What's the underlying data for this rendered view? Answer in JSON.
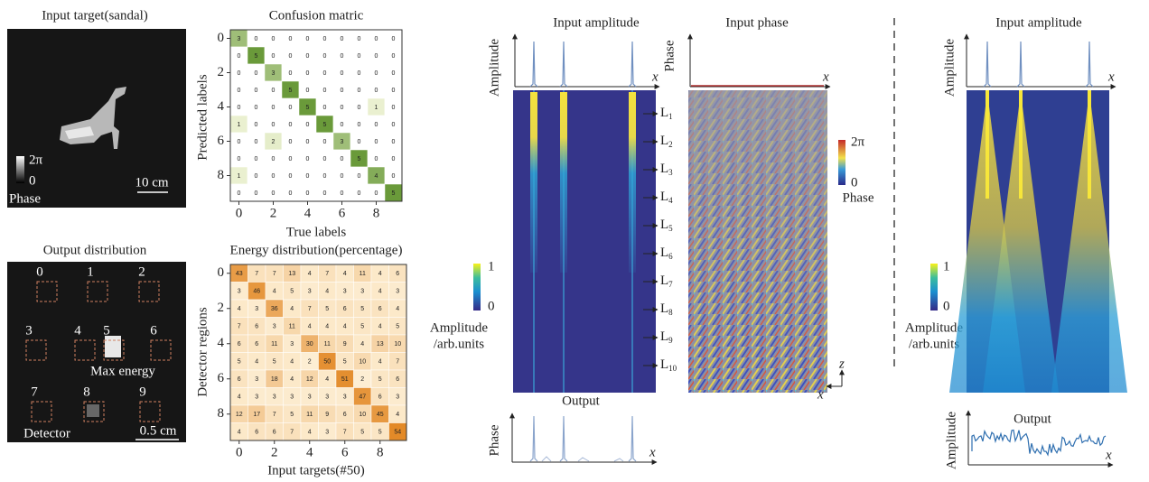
{
  "input_target": {
    "title": "Input target(sandal)",
    "cb_max": "2π",
    "cb_min": 0,
    "cb_label": "Phase",
    "scale": "10 cm"
  },
  "confusion": {
    "title": "Confusion matric",
    "xlabel": "True labels",
    "ylabel": "Predicted labels",
    "xticks": [
      0,
      2,
      4,
      6,
      8
    ],
    "yticks": [
      0,
      2,
      4,
      6,
      8
    ],
    "matrix": [
      [
        3,
        0,
        0,
        0,
        0,
        0,
        0,
        0,
        0,
        0
      ],
      [
        0,
        5,
        0,
        0,
        0,
        0,
        0,
        0,
        0,
        0
      ],
      [
        0,
        0,
        3,
        0,
        0,
        0,
        0,
        0,
        0,
        0
      ],
      [
        0,
        0,
        0,
        5,
        0,
        0,
        0,
        0,
        0,
        0
      ],
      [
        0,
        0,
        0,
        0,
        5,
        0,
        0,
        0,
        1,
        0
      ],
      [
        1,
        0,
        0,
        0,
        0,
        5,
        0,
        0,
        0,
        0
      ],
      [
        0,
        0,
        2,
        0,
        0,
        0,
        3,
        0,
        0,
        0
      ],
      [
        0,
        0,
        0,
        0,
        0,
        0,
        0,
        5,
        0,
        0
      ],
      [
        1,
        0,
        0,
        0,
        0,
        0,
        0,
        0,
        4,
        0
      ],
      [
        0,
        0,
        0,
        0,
        0,
        0,
        0,
        0,
        0,
        5
      ]
    ]
  },
  "output_distribution": {
    "title": "Output distribution",
    "regions": [
      0,
      1,
      2,
      3,
      4,
      5,
      6,
      7,
      8,
      9
    ],
    "max_label": "Max energy",
    "detector_label": "Detector",
    "scale": "0.5 cm"
  },
  "energy": {
    "title": "Energy distribution(percentage)",
    "xlabel": "Input targets(#50)",
    "ylabel": "Detector regions",
    "xticks": [
      0,
      2,
      4,
      6,
      8
    ],
    "yticks": [
      0,
      2,
      4,
      6,
      8
    ],
    "matrix": [
      [
        43,
        7,
        7,
        13,
        4,
        7,
        4,
        11,
        4,
        6
      ],
      [
        3,
        46,
        4,
        5,
        3,
        4,
        3,
        3,
        4,
        3
      ],
      [
        4,
        3,
        36,
        4,
        7,
        5,
        6,
        5,
        6,
        4
      ],
      [
        7,
        6,
        3,
        11,
        4,
        4,
        4,
        5,
        4,
        5
      ],
      [
        6,
        6,
        11,
        3,
        30,
        11,
        9,
        4,
        13,
        10
      ],
      [
        5,
        4,
        5,
        4,
        2,
        50,
        5,
        10,
        4,
        7
      ],
      [
        6,
        3,
        18,
        4,
        12,
        4,
        51,
        2,
        5,
        6
      ],
      [
        4,
        3,
        3,
        3,
        3,
        3,
        3,
        47,
        6,
        3
      ],
      [
        12,
        17,
        7,
        5,
        11,
        9,
        6,
        10,
        45,
        4
      ],
      [
        4,
        6,
        6,
        7,
        4,
        3,
        7,
        5,
        5,
        54
      ]
    ]
  },
  "middle": {
    "input_title": "Input amplitude",
    "input_ylabel": "Amplitude",
    "phase_title": "Input phase",
    "phase_ylabel": "Phase",
    "x": "x",
    "z": "z",
    "layer_letter": "L",
    "layers": [
      1,
      2,
      3,
      4,
      5,
      6,
      7,
      8,
      9,
      10
    ],
    "phase_cb": {
      "max": "2π",
      "min": 0,
      "label": "Phase"
    },
    "amp_cb": {
      "max": 1,
      "min": 0,
      "label": [
        "Amplitude",
        "/arb.units"
      ]
    },
    "output_title": "Output",
    "output_ylabel": "Phase"
  },
  "right": {
    "input_title": "Input amplitude",
    "input_ylabel": "Amplitude",
    "x": "x",
    "amp_cb": {
      "max": 1,
      "min": 0,
      "label": [
        "Amplitude",
        "/arb.units"
      ]
    },
    "output_title": "Output",
    "output_ylabel": "Amplitude"
  }
}
